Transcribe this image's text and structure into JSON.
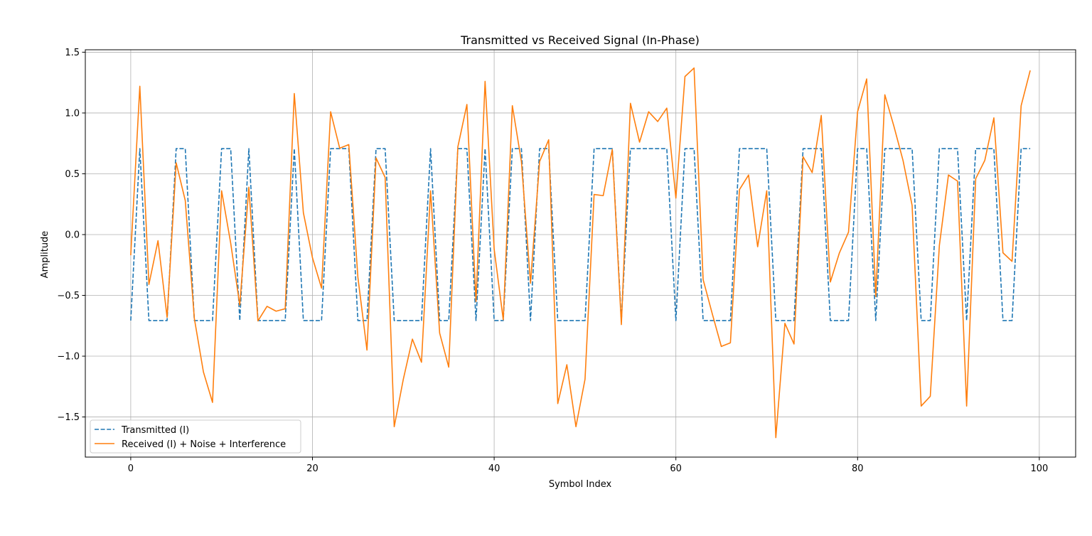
{
  "chart_data": {
    "type": "line",
    "title": "Transmitted vs Received Signal (In-Phase)",
    "xlabel": "Symbol Index",
    "ylabel": "Amplitude",
    "xlim": [
      -5,
      104
    ],
    "ylim": [
      -1.83,
      1.52
    ],
    "xticks": [
      0,
      20,
      40,
      60,
      80,
      100
    ],
    "yticks": [
      -1.5,
      -1.0,
      -0.5,
      0.0,
      0.5,
      1.0,
      1.5
    ],
    "grid": true,
    "legend_position": "lower-left",
    "series": [
      {
        "name": "Transmitted (I)",
        "color": "#1f77b4",
        "style": "dashed",
        "values": [
          -0.707,
          0.707,
          -0.707,
          -0.707,
          -0.707,
          0.707,
          0.707,
          -0.707,
          -0.707,
          -0.707,
          0.707,
          0.707,
          -0.707,
          0.707,
          -0.707,
          -0.707,
          -0.707,
          -0.707,
          0.707,
          -0.707,
          -0.707,
          -0.707,
          0.707,
          0.707,
          0.707,
          -0.707,
          -0.707,
          0.707,
          0.707,
          -0.707,
          -0.707,
          -0.707,
          -0.707,
          0.707,
          -0.707,
          -0.707,
          0.707,
          0.707,
          -0.707,
          0.707,
          -0.707,
          -0.707,
          0.707,
          0.707,
          -0.707,
          0.707,
          0.707,
          -0.707,
          -0.707,
          -0.707,
          -0.707,
          0.707,
          0.707,
          0.707,
          -0.707,
          0.707,
          0.707,
          0.707,
          0.707,
          0.707,
          -0.707,
          0.707,
          0.707,
          -0.707,
          -0.707,
          -0.707,
          -0.707,
          0.707,
          0.707,
          0.707,
          0.707,
          -0.707,
          -0.707,
          -0.707,
          0.707,
          0.707,
          0.707,
          -0.707,
          -0.707,
          -0.707,
          0.707,
          0.707,
          -0.707,
          0.707,
          0.707,
          0.707,
          0.707,
          -0.707,
          -0.707,
          0.707,
          0.707,
          0.707,
          -0.707,
          0.707,
          0.707,
          0.707,
          -0.707,
          -0.707,
          0.707,
          0.707
        ]
      },
      {
        "name": "Received (I) + Noise + Interference",
        "color": "#ff7f0e",
        "style": "solid",
        "values": [
          -0.17,
          1.22,
          -0.41,
          -0.05,
          -0.68,
          0.59,
          0.28,
          -0.69,
          -1.13,
          -1.38,
          0.36,
          -0.07,
          -0.58,
          0.39,
          -0.71,
          -0.59,
          -0.63,
          -0.61,
          1.16,
          0.18,
          -0.19,
          -0.44,
          1.01,
          0.71,
          0.74,
          -0.35,
          -0.95,
          0.63,
          0.47,
          -1.58,
          -1.19,
          -0.86,
          -1.05,
          0.36,
          -0.81,
          -1.09,
          0.72,
          1.07,
          -0.55,
          1.26,
          -0.12,
          -0.7,
          1.06,
          0.6,
          -0.4,
          0.6,
          0.78,
          -1.39,
          -1.07,
          -1.58,
          -1.19,
          0.33,
          0.32,
          0.7,
          -0.74,
          1.08,
          0.76,
          1.01,
          0.93,
          1.04,
          0.3,
          1.3,
          1.37,
          -0.37,
          -0.65,
          -0.92,
          -0.89,
          0.37,
          0.49,
          -0.1,
          0.36,
          -1.67,
          -0.73,
          -0.9,
          0.64,
          0.51,
          0.98,
          -0.39,
          -0.15,
          0.02,
          1.01,
          1.28,
          -0.51,
          1.15,
          0.89,
          0.61,
          0.24,
          -1.41,
          -1.33,
          -0.09,
          0.49,
          0.44,
          -1.41,
          0.46,
          0.61,
          0.96,
          -0.15,
          -0.22,
          1.06,
          1.35
        ]
      }
    ]
  }
}
